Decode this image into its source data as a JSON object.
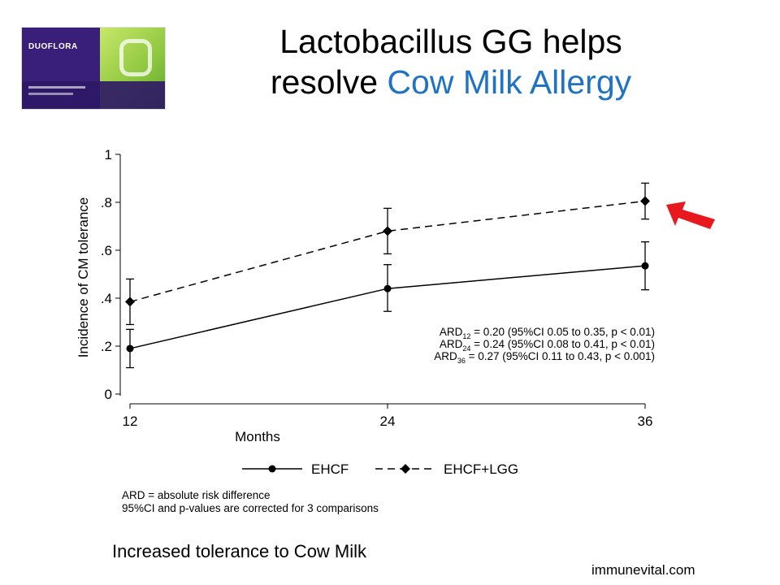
{
  "header": {
    "title_line1": "Lactobacillus GG helps",
    "title_line2_prefix": "resolve ",
    "title_line2_highlight": "Cow Milk Allergy"
  },
  "product_image": {
    "brand": "DUOFLORA"
  },
  "chart_data": {
    "type": "line",
    "x": [
      12,
      24,
      36
    ],
    "xlabel": "Months",
    "ylabel": "Incidence of CM tolerance",
    "xlim": [
      12,
      36
    ],
    "ylim": [
      0,
      1
    ],
    "xticks": [
      "12",
      "24",
      "36"
    ],
    "yticks": [
      "0",
      ".2",
      ".4",
      ".6",
      ".8",
      "1"
    ],
    "grid": false,
    "legend_position": "bottom",
    "series": [
      {
        "name": "EHCF",
        "style": "solid",
        "values": [
          0.19,
          0.44,
          0.535
        ],
        "lower": [
          0.11,
          0.345,
          0.435
        ],
        "upper": [
          0.27,
          0.54,
          0.635
        ]
      },
      {
        "name": "EHCF+LGG",
        "style": "dashed",
        "values": [
          0.385,
          0.68,
          0.805
        ],
        "lower": [
          0.29,
          0.585,
          0.73
        ],
        "upper": [
          0.48,
          0.775,
          0.88
        ]
      }
    ],
    "annotations": [
      {
        "prefix": "ARD",
        "sub": "12",
        "text": " = 0.20 (95%CI 0.05 to 0.35, p < 0.01)"
      },
      {
        "prefix": "ARD",
        "sub": "24",
        "text": " = 0.24 (95%CI 0.08 to 0.41, p < 0.01)"
      },
      {
        "prefix": "ARD",
        "sub": "36",
        "text": " = 0.27 (95%CI 0.11 to 0.43, p < 0.001)"
      }
    ],
    "footnotes": [
      "ARD = absolute risk difference",
      "95%CI and p-values are corrected for 3 comparisons"
    ],
    "arrow_color": "#e8191e"
  },
  "footer": {
    "caption": "Increased tolerance to Cow Milk",
    "site": "immunevital.com"
  }
}
